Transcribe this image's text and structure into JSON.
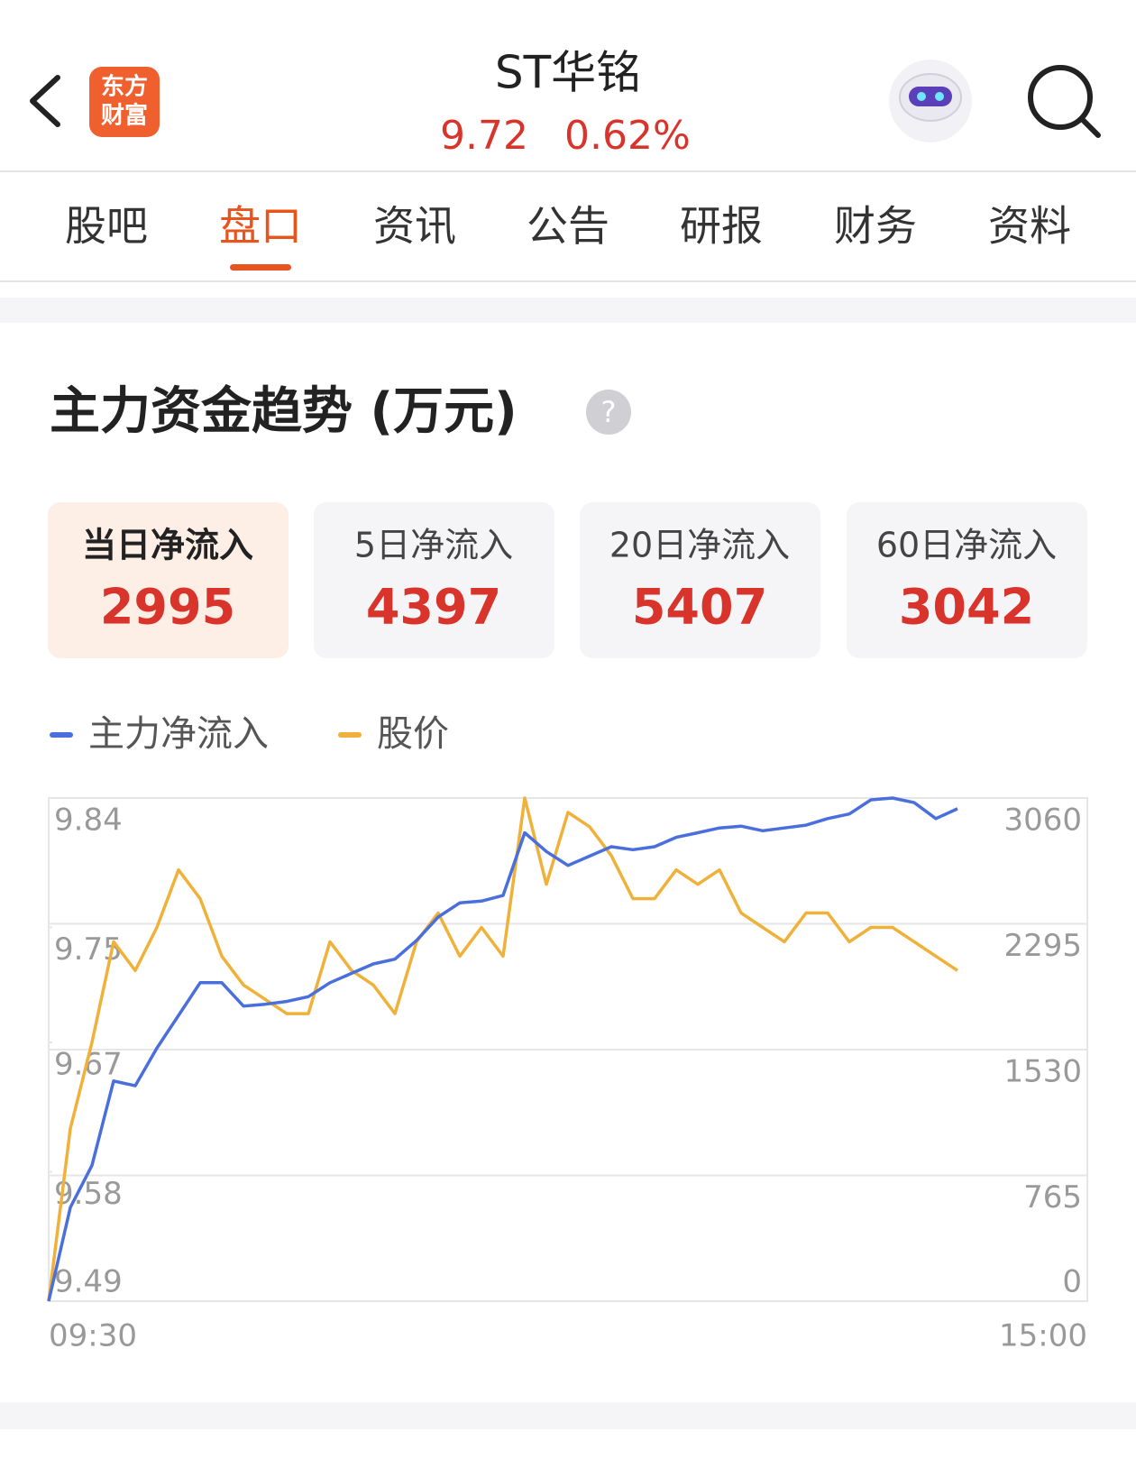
{
  "header": {
    "logo": [
      "东方",
      "财富"
    ],
    "title": "ST华铭",
    "price": "9.72",
    "change": "0.62%"
  },
  "tabs": {
    "items": [
      "股吧",
      "盘口",
      "资讯",
      "公告",
      "研报",
      "财务",
      "资料"
    ],
    "active": 1
  },
  "summary_cards": [
    {
      "label": "当日净流入",
      "value": 2995
    },
    {
      "label": "5日净流入",
      "value": 4397
    },
    {
      "label": "20日净流入",
      "value": 5407
    },
    {
      "label": "60日净流入",
      "value": 3042
    }
  ],
  "chart_data": {
    "type": "line",
    "title": "主力资金趋势 (万元)",
    "x": [
      "09:30",
      "09:35",
      "09:40",
      "09:45",
      "09:50",
      "09:55",
      "10:00",
      "10:05",
      "10:10",
      "10:15",
      "10:20",
      "10:25",
      "10:30",
      "10:35",
      "10:40",
      "10:45",
      "10:50",
      "10:55",
      "11:00",
      "11:05",
      "11:10",
      "11:15",
      "11:20",
      "11:25",
      "11:30",
      "13:05",
      "13:10",
      "13:15",
      "13:20",
      "13:25",
      "13:30",
      "13:35",
      "13:40",
      "13:45",
      "13:50",
      "13:55",
      "14:00",
      "14:05",
      "14:10",
      "14:15",
      "14:20",
      "14:25",
      "14:30"
    ],
    "series": [
      {
        "name": "主力净流入",
        "color": "#4a6fdc",
        "axis": "y2",
        "values": [
          0,
          570,
          826,
          1339,
          1310,
          1539,
          1738,
          1937,
          1937,
          1795,
          1806,
          1823,
          1852,
          1937,
          1994,
          2051,
          2080,
          2194,
          2336,
          2422,
          2433,
          2467,
          2849,
          2735,
          2650,
          2707,
          2764,
          2746,
          2764,
          2821,
          2849,
          2878,
          2889,
          2861,
          2878,
          2895,
          2935,
          2963,
          3049,
          3060,
          3032,
          2935,
          2995
        ]
      },
      {
        "name": "股价",
        "color": "#f0b13a",
        "values": [
          9.49,
          9.61,
          9.67,
          9.74,
          9.72,
          9.75,
          9.79,
          9.77,
          9.73,
          9.71,
          9.7,
          9.69,
          9.69,
          9.74,
          9.72,
          9.71,
          9.69,
          9.74,
          9.76,
          9.73,
          9.75,
          9.73,
          9.84,
          9.78,
          9.83,
          9.82,
          9.8,
          9.77,
          9.77,
          9.79,
          9.78,
          9.79,
          9.76,
          9.75,
          9.74,
          9.76,
          9.76,
          9.74,
          9.75,
          9.75,
          9.74,
          9.73,
          9.72
        ]
      }
    ],
    "xticks": [
      "09:30",
      "15:00"
    ],
    "ylim": [
      9.49,
      9.84
    ],
    "yticks": [
      9.84,
      9.75,
      9.67,
      9.58,
      9.49
    ],
    "y2lim": [
      0,
      3060
    ],
    "y2ticks": [
      3060,
      2295,
      1530,
      765,
      0
    ],
    "grid": true
  }
}
